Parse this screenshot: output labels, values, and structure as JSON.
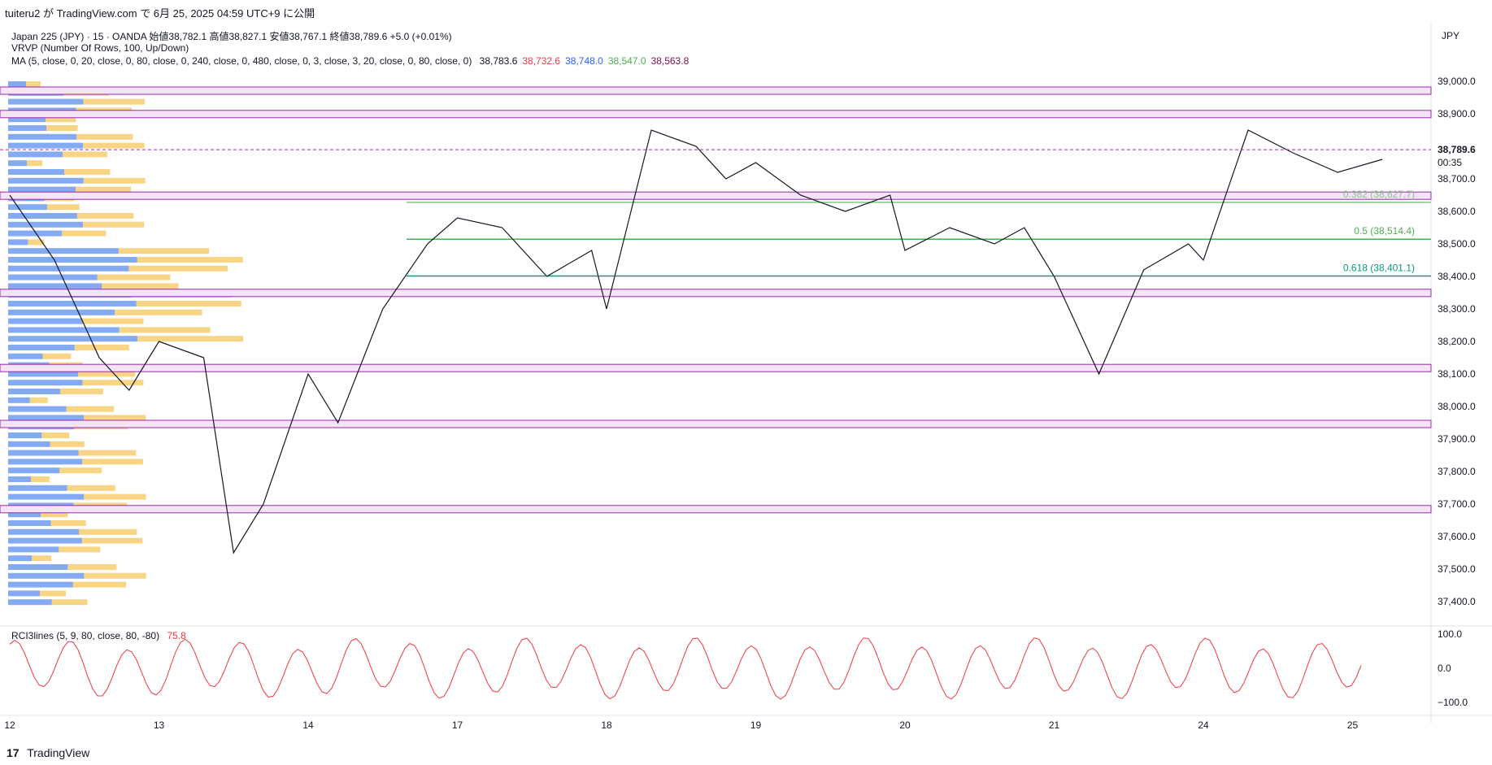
{
  "header": {
    "publish_line": "tuiteru2 が TradingView.com で 6月 25, 2025 04:59 UTC+9 に公開"
  },
  "legend": {
    "symbol_line": "Japan 225 (JPY) · 15 · OANDA  始値38,782.1  高値38,827.1  安値38,767.1  終値38,789.6  +5.0 (+0.01%)",
    "vrvp_line": "VRVP (Number Of Rows, 100, Up/Down)",
    "ma_line": "MA (5, close, 0, 20, close, 0, 80, close, 0, 240, close, 0, 480, close, 0, 3, close, 3, 20, close, 0, 80, close, 0)",
    "ma_values": [
      {
        "text": "38,783.6",
        "color": "#131722"
      },
      {
        "text": "38,732.6",
        "color": "#f23645"
      },
      {
        "text": "38,748.0",
        "color": "#2962ff"
      },
      {
        "text": "38,547.0",
        "color": "#4caf50"
      },
      {
        "text": "38,563.8",
        "color": "#880e4f"
      }
    ],
    "rci_line": "RCI3lines (5, 9, 80, close, 80, -80)",
    "rci_value": "75.8"
  },
  "currency": "JPY",
  "footer": {
    "logo": "17",
    "brand": "TradingView"
  },
  "chart_data": {
    "type": "line",
    "instrument": "Japan 225 (JPY)",
    "interval": "15",
    "ylim": [
      37400,
      39000
    ],
    "y_ticks": [
      "39,000.0",
      "38,900.0",
      "38,800.0",
      "38,700.0",
      "38,600.0",
      "38,500.0",
      "38,400.0",
      "38,300.0",
      "38,200.0",
      "38,100.0",
      "38,000.0",
      "37,900.0",
      "37,800.0",
      "37,700.0",
      "37,600.0",
      "37,500.0",
      "37,400.0"
    ],
    "y_tick_values": [
      39000,
      38900,
      38800,
      38700,
      38600,
      38500,
      38400,
      38300,
      38200,
      38100,
      38000,
      37900,
      37800,
      37700,
      37600,
      37500,
      37400
    ],
    "x_ticks": [
      "12",
      "13",
      "14",
      "17",
      "18",
      "19",
      "20",
      "21",
      "24",
      "25"
    ],
    "x_tick_index": [
      0,
      1,
      2,
      3,
      4,
      5,
      6,
      7,
      8,
      9
    ],
    "last_price": {
      "label": "38,789.6",
      "value": 38789.6,
      "countdown": "00:35"
    },
    "horizontal_levels": [
      {
        "value": 38970,
        "color": "#9c27b0"
      },
      {
        "value": 38898,
        "color": "#9c27b0"
      },
      {
        "value": 38647,
        "color": "#9c27b0"
      },
      {
        "value": 38348,
        "color": "#9c27b0"
      },
      {
        "value": 38117,
        "color": "#9c27b0"
      },
      {
        "value": 37945,
        "color": "#9c27b0"
      },
      {
        "value": 37683,
        "color": "#9c27b0"
      }
    ],
    "fibonacci": [
      {
        "label": "0.382 (38,627.7)",
        "value": 38627.7,
        "color": "#81c784"
      },
      {
        "label": "0.5 (38,514.4)",
        "value": 38514.4,
        "color": "#4caf50"
      },
      {
        "label": "0.618 (38,401.1)",
        "value": 38401.1,
        "color": "#089981"
      }
    ],
    "price_path": [
      [
        0,
        38650
      ],
      [
        0.3,
        38450
      ],
      [
        0.6,
        38150
      ],
      [
        0.8,
        38050
      ],
      [
        1.0,
        38200
      ],
      [
        1.3,
        38150
      ],
      [
        1.5,
        37550
      ],
      [
        1.7,
        37700
      ],
      [
        2.0,
        38100
      ],
      [
        2.2,
        37950
      ],
      [
        2.5,
        38300
      ],
      [
        2.8,
        38500
      ],
      [
        3.0,
        38580
      ],
      [
        3.3,
        38550
      ],
      [
        3.6,
        38400
      ],
      [
        3.9,
        38480
      ],
      [
        4.0,
        38300
      ],
      [
        4.3,
        38850
      ],
      [
        4.6,
        38800
      ],
      [
        4.8,
        38700
      ],
      [
        5.0,
        38750
      ],
      [
        5.3,
        38650
      ],
      [
        5.6,
        38600
      ],
      [
        5.9,
        38650
      ],
      [
        6.0,
        38480
      ],
      [
        6.3,
        38550
      ],
      [
        6.6,
        38500
      ],
      [
        6.8,
        38550
      ],
      [
        7.0,
        38400
      ],
      [
        7.3,
        38100
      ],
      [
        7.6,
        38420
      ],
      [
        7.9,
        38500
      ],
      [
        8.0,
        38450
      ],
      [
        8.3,
        38850
      ],
      [
        8.6,
        38780
      ],
      [
        8.9,
        38720
      ],
      [
        9.2,
        38760
      ]
    ],
    "volume_profile_note": "Up/Down volume by price rows"
  }
}
